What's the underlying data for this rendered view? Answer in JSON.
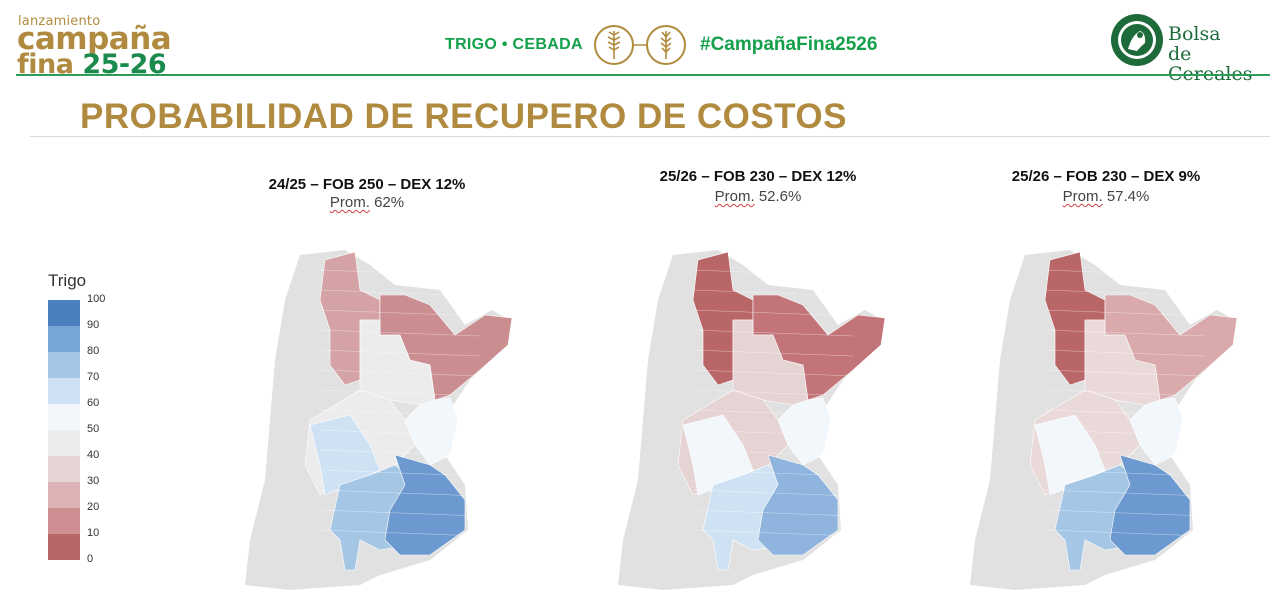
{
  "header": {
    "logo_small": "lanzamiento",
    "logo_line1": "campaña",
    "logo_line2_word": "fina",
    "logo_line2_years": "25-26",
    "crop_text": "TRIGO • CEBADA",
    "hashtag": "#CampañaFina2526",
    "org_line1": "Bolsa",
    "org_line2": "de Cereales",
    "icons": [
      "wheat-icon",
      "barley-icon",
      "bolsa-de-cereales-seal-icon"
    ]
  },
  "title": "PROBABILIDAD DE RECUPERO DE COSTOS",
  "maps": [
    {
      "title": "24/25 – FOB 250 – DEX 12%",
      "prom_label": "Prom.",
      "prom_value": "62%"
    },
    {
      "title": "25/26 – FOB 230 – DEX 12%",
      "prom_label": "Prom.",
      "prom_value": "52.6%"
    },
    {
      "title": "25/26 – FOB 230 – DEX 9%",
      "prom_label": "Prom.",
      "prom_value": "57.4%"
    }
  ],
  "legend": {
    "title": "Trigo",
    "labels": [
      "100",
      "90",
      "80",
      "70",
      "60",
      "50",
      "40",
      "30",
      "20",
      "10",
      "0"
    ],
    "colors": [
      "#4a7fc0",
      "#77a5d6",
      "#a6c6e6",
      "#cfe2f3",
      "#f2f7fc",
      "#ececec",
      "#e6d3d3",
      "#ddb2b4",
      "#cd8f92",
      "#b96669"
    ]
  },
  "map_colors": {
    "background_land": "#e1e1e1",
    "map1": {
      "north": "#d5a3a6",
      "north_east": "#ca8d90",
      "center": "#ececec",
      "center_east": "#f2f7fc",
      "south_west": "#cfe2f3",
      "south": "#a6c6e6",
      "south_east": "#6c99cf"
    },
    "map2": {
      "north": "#b96669",
      "north_east": "#c27478",
      "center": "#e6d3d3",
      "center_east": "#f2f7fc",
      "south_west": "#f2f7fc",
      "south": "#cfe2f3",
      "south_east": "#8fb4de"
    },
    "map3": {
      "north": "#b96669",
      "north_east": "#d9a9ab",
      "center": "#ead9d9",
      "center_east": "#f2f7fc",
      "south_west": "#f2f7fc",
      "south": "#a6c6e6",
      "south_east": "#6c99cf"
    }
  }
}
